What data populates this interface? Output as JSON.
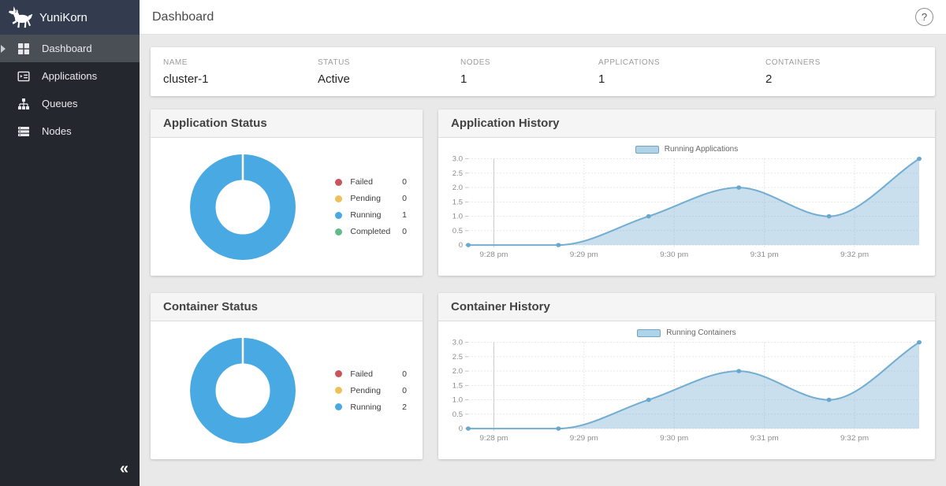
{
  "app": {
    "title": "YuniKorn"
  },
  "topbar": {
    "title": "Dashboard",
    "help_glyph": "?"
  },
  "sidebar": {
    "collapse_glyph": "«",
    "items": [
      {
        "label": "Dashboard",
        "icon": "dashboard-grid-icon",
        "active": true
      },
      {
        "label": "Applications",
        "icon": "applications-list-icon",
        "active": false
      },
      {
        "label": "Queues",
        "icon": "queues-tree-icon",
        "active": false
      },
      {
        "label": "Nodes",
        "icon": "nodes-stack-icon",
        "active": false
      }
    ]
  },
  "cluster_info": {
    "fields": [
      {
        "label": "NAME",
        "value": "cluster-1"
      },
      {
        "label": "STATUS",
        "value": "Active"
      },
      {
        "label": "NODES",
        "value": "1"
      },
      {
        "label": "APPLICATIONS",
        "value": "1"
      },
      {
        "label": "CONTAINERS",
        "value": "2"
      }
    ]
  },
  "chart_data": [
    {
      "id": "application-status",
      "type": "pie",
      "variant": "donut",
      "title": "Application Status",
      "labels": [
        "Failed",
        "Pending",
        "Running",
        "Completed"
      ],
      "values": [
        0,
        0,
        1,
        0
      ],
      "colors": [
        "#c9545c",
        "#eec05c",
        "#49a9e2",
        "#62ba87"
      ],
      "separator_color": "#ffffff"
    },
    {
      "id": "application-history",
      "type": "area",
      "title": "Application History",
      "legend": "Running Applications",
      "legend_position": "top-center",
      "x_domain_seconds": [
        0,
        300
      ],
      "x_seconds": [
        0,
        60,
        120,
        180,
        240,
        300
      ],
      "values": [
        0,
        0,
        1,
        2,
        1,
        3
      ],
      "x_gridlines": [
        {
          "t": 17,
          "label": "9:28 pm"
        },
        {
          "t": 77,
          "label": "9:29 pm"
        },
        {
          "t": 137,
          "label": "9:30 pm"
        },
        {
          "t": 197,
          "label": "9:31 pm"
        },
        {
          "t": 257,
          "label": "9:32 pm"
        }
      ],
      "y_ticks": [
        {
          "v": 0,
          "label": "0"
        },
        {
          "v": 0.5,
          "label": "0.5"
        },
        {
          "v": 1,
          "label": "1.0"
        },
        {
          "v": 1.5,
          "label": "1.5"
        },
        {
          "v": 2,
          "label": "2.0"
        },
        {
          "v": 2.5,
          "label": "2.5"
        },
        {
          "v": 3,
          "label": "3.0"
        }
      ],
      "ylim": [
        0,
        3
      ],
      "grid": true,
      "line_color": "#73aed2",
      "point_color": "#69a8cd",
      "fill_color": "rgba(127,179,211,0.42)",
      "legend_swatch_fill": "#b1d3e7",
      "legend_swatch_border": "#6fa6c6"
    },
    {
      "id": "container-status",
      "type": "pie",
      "variant": "donut",
      "title": "Container Status",
      "labels": [
        "Failed",
        "Pending",
        "Running"
      ],
      "values": [
        0,
        0,
        2
      ],
      "colors": [
        "#c9545c",
        "#eec05c",
        "#49a9e2"
      ],
      "separator_color": "#ffffff"
    },
    {
      "id": "container-history",
      "type": "area",
      "title": "Container History",
      "legend": "Running Containers",
      "legend_position": "top-center",
      "x_domain_seconds": [
        0,
        300
      ],
      "x_seconds": [
        0,
        60,
        120,
        180,
        240,
        300
      ],
      "values": [
        0,
        0,
        1,
        2,
        1,
        3
      ],
      "x_gridlines": [
        {
          "t": 17,
          "label": "9:28 pm"
        },
        {
          "t": 77,
          "label": "9:29 pm"
        },
        {
          "t": 137,
          "label": "9:30 pm"
        },
        {
          "t": 197,
          "label": "9:31 pm"
        },
        {
          "t": 257,
          "label": "9:32 pm"
        }
      ],
      "y_ticks": [
        {
          "v": 0,
          "label": "0"
        },
        {
          "v": 0.5,
          "label": "0.5"
        },
        {
          "v": 1,
          "label": "1.0"
        },
        {
          "v": 1.5,
          "label": "1.5"
        },
        {
          "v": 2,
          "label": "2.0"
        },
        {
          "v": 2.5,
          "label": "2.5"
        },
        {
          "v": 3,
          "label": "3.0"
        }
      ],
      "ylim": [
        0,
        3
      ],
      "grid": true,
      "line_color": "#73aed2",
      "point_color": "#69a8cd",
      "fill_color": "rgba(127,179,211,0.42)",
      "legend_swatch_fill": "#b1d3e7",
      "legend_swatch_border": "#6fa6c6"
    }
  ]
}
